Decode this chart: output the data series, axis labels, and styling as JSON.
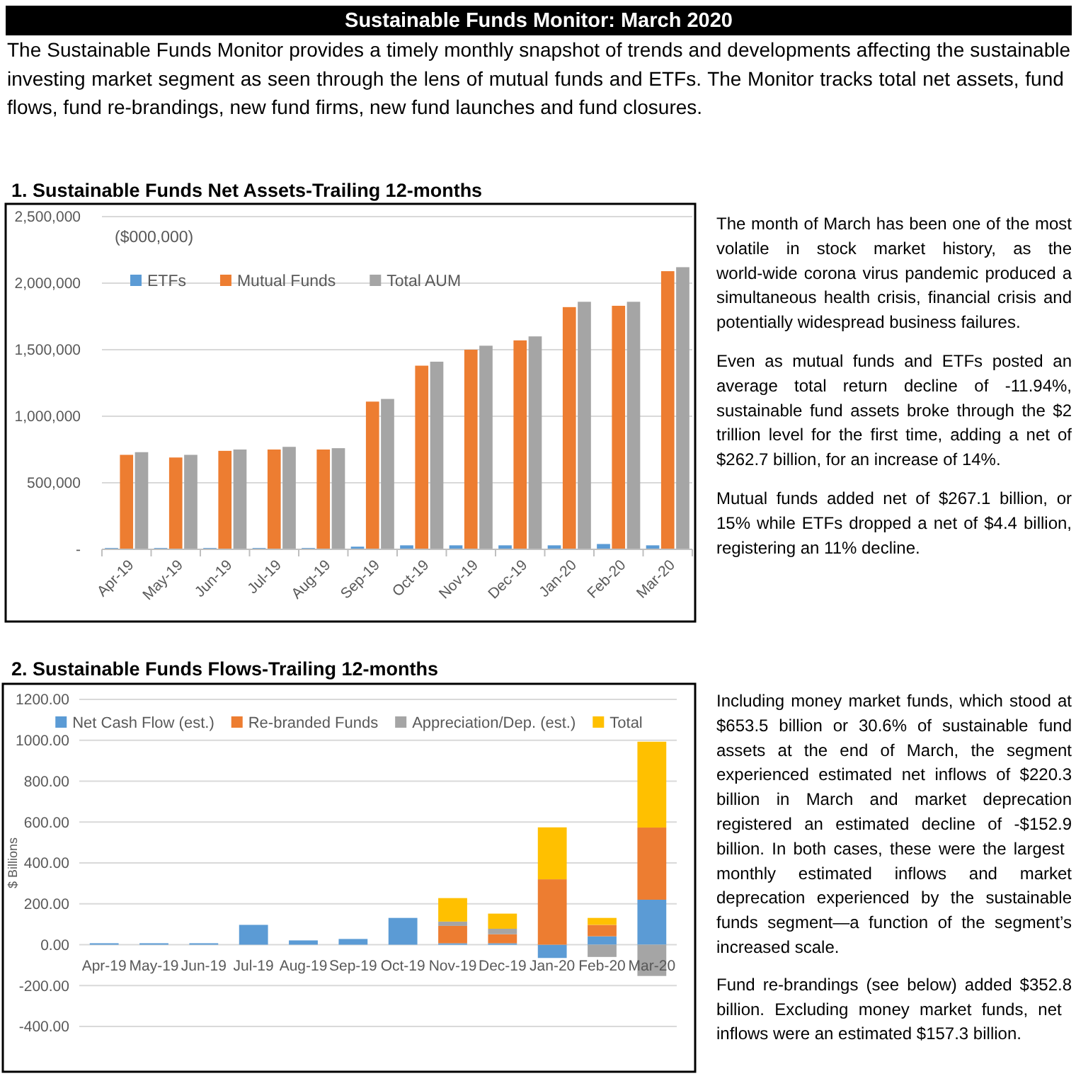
{
  "chart_data": [
    {
      "type": "other",
      "title": "Sustainable Funds Monitor:  March 2020",
      "annotations": [
        "The Sustainable Funds Monitor provides a timely monthly snapshot of trends and developments affecting the sustainable investing market segment as seen through the lens of mutual funds and ETFs.  The Monitor tracks total net assets, fund flows, fund re-brandings, new fund firms, new fund launches and fund closures."
      ]
    },
    {
      "type": "bar",
      "title": "1. Sustainable Funds Net Assets-Trailing 12-months",
      "subtitle": "($000,000)",
      "categories": [
        "Apr-19",
        "May-19",
        "Jun-19",
        "Jul-19",
        "Aug-19",
        "Sep-19",
        "Oct-19",
        "Nov-19",
        "Dec-19",
        "Jan-20",
        "Feb-20",
        "Mar-20"
      ],
      "series": [
        {
          "name": "ETFs",
          "color": "#5b9bd5",
          "values": [
            10000,
            10000,
            10000,
            10000,
            10000,
            20000,
            30000,
            30000,
            30000,
            30000,
            40000,
            30000
          ]
        },
        {
          "name": "Mutual Funds",
          "color": "#ed7d31",
          "values": [
            710000,
            690000,
            740000,
            750000,
            750000,
            1110000,
            1380000,
            1500000,
            1570000,
            1820000,
            1830000,
            2090000
          ]
        },
        {
          "name": "Total AUM",
          "color": "#a5a5a5",
          "values": [
            730000,
            710000,
            750000,
            770000,
            760000,
            1130000,
            1410000,
            1530000,
            1600000,
            1860000,
            1860000,
            2120000
          ]
        }
      ],
      "ylim": [
        0,
        2500000
      ],
      "yticks": [
        {
          "value": 0,
          "label": "-"
        },
        {
          "value": 500000,
          "label": "500,000"
        },
        {
          "value": 1000000,
          "label": "1,000,000"
        },
        {
          "value": 1500000,
          "label": "1,500,000"
        },
        {
          "value": 2000000,
          "label": "2,000,000"
        },
        {
          "value": 2500000,
          "label": "2,500,000"
        }
      ],
      "grid": "y",
      "legend": "top left",
      "annotations": [
        "The month of March has been one of the most volatile in stock market history, as the world-wide corona virus pandemic produced a simultaneous health crisis, financial crisis and potentially widespread business failures.",
        "Even as mutual funds and ETFs posted an average total return decline of -11.94%, sustainable fund assets broke through the $2 trillion level for the first time, adding a net of $262.7 billion, for an increase of 14%.",
        "Mutual funds added net of $267.1 billion, or 15% while ETFs dropped a net of $4.4 billion, registering an 11% decline."
      ]
    },
    {
      "type": "bar",
      "title": "2. Sustainable Funds Flows-Trailing 12-months",
      "ylabel": "$ Billions",
      "stacked": true,
      "categories": [
        "Apr-19",
        "May-19",
        "Jun-19",
        "Jul-19",
        "Aug-19",
        "Sep-19",
        "Oct-19",
        "Nov-19",
        "Dec-19",
        "Jan-20",
        "Feb-20",
        "Mar-20"
      ],
      "series": [
        {
          "name": "Net Cash Flow (est.)",
          "color": "#5b9bd5",
          "values": [
            7,
            7,
            7,
            97,
            21,
            28,
            131,
            7,
            7,
            -65,
            41,
            220
          ]
        },
        {
          "name": "Re-branded Funds",
          "color": "#ed7d31",
          "values": [
            null,
            null,
            null,
            null,
            null,
            null,
            null,
            85,
            44,
            320,
            56,
            353
          ]
        },
        {
          "name": "Appreciation/Dep. (est.)",
          "color": "#a5a5a5",
          "values": [
            null,
            null,
            null,
            null,
            null,
            null,
            null,
            21,
            27,
            null,
            -60,
            -153
          ]
        },
        {
          "name": "Total",
          "color": "#ffc000",
          "values": [
            null,
            null,
            null,
            null,
            null,
            null,
            null,
            115,
            74,
            254,
            34,
            420
          ]
        }
      ],
      "ylim": [
        -400,
        1200
      ],
      "yticks": [
        {
          "value": -400,
          "label": "-400.00"
        },
        {
          "value": -200,
          "label": "-200.00"
        },
        {
          "value": 0,
          "label": "0.00"
        },
        {
          "value": 200,
          "label": "200.00"
        },
        {
          "value": 400,
          "label": "400.00"
        },
        {
          "value": 600,
          "label": "600.00"
        },
        {
          "value": 800,
          "label": "800.00"
        },
        {
          "value": 1000,
          "label": "1000.00"
        },
        {
          "value": 1200,
          "label": "1200.00"
        }
      ],
      "grid": "y",
      "legend": "top",
      "annotations": [
        "Including money market funds, which stood at $653.5 billion or 30.6% of sustainable fund assets at the end of March, the segment experienced estimated net inflows of $220.3 billion in March and market deprecation registered an estimated decline of -$152.9 billion.  In both cases, these were the largest monthly estimated inflows and market deprecation experienced by the sustainable funds segment—a function of the segment’s increased scale.",
        "Fund re-brandings (see below) added $352.8 billion.  Excluding money market funds, net inflows were an estimated $157.3 billion."
      ]
    }
  ]
}
